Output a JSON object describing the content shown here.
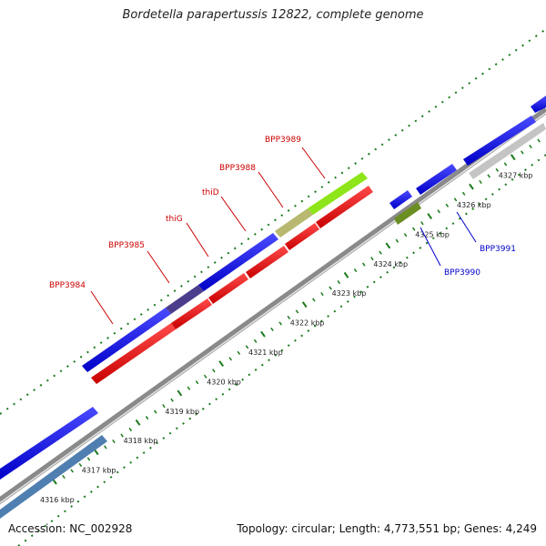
{
  "header": {
    "title": "Bordetella parapertussis 12822, complete genome"
  },
  "footer": {
    "accession": "Accession: NC_002928",
    "topology": "Topology: circular; Length: 4,773,551 bp; Genes: 4,249"
  },
  "scale_ticks": [
    "4316 kbp",
    "4317 kbp",
    "4318 kbp",
    "4319 kbp",
    "4320 kbp",
    "4321 kbp",
    "4322 kbp",
    "4323 kbp",
    "4324 kbp",
    "4325 kbp",
    "4326 kbp",
    "4327 kbp"
  ],
  "gene_labels": {
    "BPP3984": "BPP3984",
    "BPP3985": "BPP3985",
    "thiG": "thiG",
    "thiD": "thiD",
    "BPP3988": "BPP3988",
    "BPP3989": "BPP3989",
    "BPP3990": "BPP3990",
    "BPP3991": "BPP3991"
  },
  "colors": {
    "label_forward": "#cc0000",
    "label_reverse": "#0000cc",
    "cds_blue": "#0000ee",
    "cds_red": "#ee0000",
    "backbone": "#7f7f7f",
    "ticks": "#1a7a1a"
  }
}
